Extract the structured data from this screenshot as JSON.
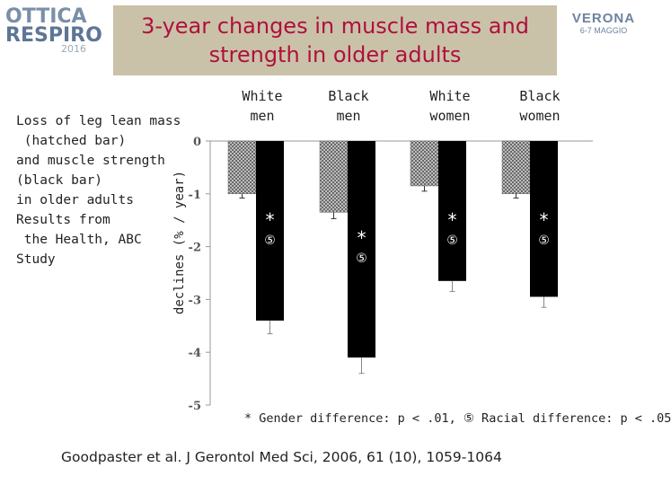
{
  "logo_left": {
    "line1": "OTTICA",
    "line2": "RESPIRO",
    "year": "2016"
  },
  "logo_right": {
    "line1": "VERONA",
    "line2": "6-7 MAGGIO"
  },
  "title": "3-year changes in muscle mass and\nstrength in older adults",
  "description": [
    "Loss of leg lean mass",
    " (hatched bar)",
    "and muscle strength",
    "(black bar)",
    "in older adults",
    "Results from",
    " the Health, ABC",
    "Study"
  ],
  "footnote": "* Gender difference: p < .01, ⑤ Racial difference: p < .05",
  "citation": "Goodpaster et al. J Gerontol Med Sci, 2006, 61 (10), 1059-1064",
  "colors": {
    "title": "#b0103c",
    "title_bg": "#c9c2a9",
    "strength_bar": "#000000",
    "lean_bar": "#8c8c8c"
  },
  "chart_data": {
    "type": "bar",
    "ylabel": "declines (% / year)",
    "ylim": [
      -5,
      0
    ],
    "yticks": [
      0,
      -1,
      -2,
      -3,
      -4,
      -5
    ],
    "ytick_labels": [
      "0",
      "-1",
      "-2",
      "-3",
      "-4",
      "-5"
    ],
    "categories": [
      "White\nmen",
      "Black\nmen",
      "White\nwomen",
      "Black\nwomen"
    ],
    "series": [
      {
        "name": "Leg lean mass (hatched)",
        "values": [
          -1.0,
          -1.35,
          -0.85,
          -1.0
        ],
        "errors": [
          0.08,
          0.12,
          0.1,
          0.08
        ]
      },
      {
        "name": "Muscle strength (black)",
        "values": [
          -3.4,
          -4.1,
          -2.65,
          -2.95
        ],
        "errors": [
          0.25,
          0.3,
          0.2,
          0.2
        ]
      }
    ],
    "annotations": [
      {
        "category": 0,
        "star": "*",
        "circle": "⑤"
      },
      {
        "category": 1,
        "star": "*",
        "circle": "⑤"
      },
      {
        "category": 2,
        "star": "*",
        "circle": "⑤"
      },
      {
        "category": 3,
        "star": "*",
        "circle": "⑤"
      }
    ]
  }
}
